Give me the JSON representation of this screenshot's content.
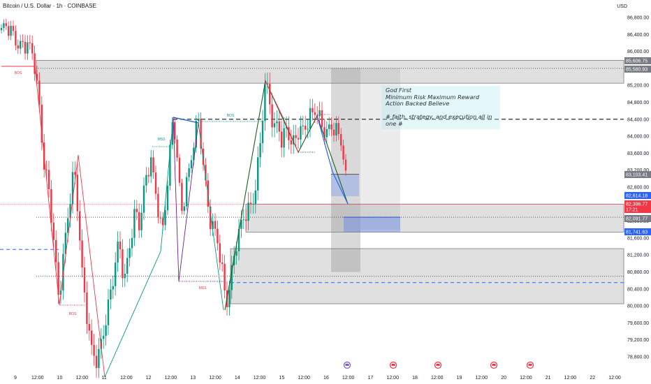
{
  "header": {
    "title": "Bitcoin / U.S. Dollar · 1h · COINBASE",
    "currency": "USD"
  },
  "note": {
    "line1": "God First",
    "line2": "Minimum Risk Maximum Reward",
    "line3": "Action Backed Believe",
    "line4": "# faith, strategy, and execution all in one #"
  },
  "colors": {
    "up": "#089981",
    "down": "#f23645",
    "zone": "#9e9e9e",
    "blue_dash": "#2962ff",
    "price_label": "#f23645",
    "blue_label": "#2962ff",
    "grey_label": "#787b86"
  },
  "chart_data": {
    "type": "candlestick",
    "title": "Bitcoin / U.S. Dollar · 1h · COINBASE",
    "y_axis": {
      "unit": "USD",
      "range": [
        78600,
        86900
      ],
      "ticks": [
        "86,800.00",
        "86,400.00",
        "86,000.00",
        "85,600.00",
        "85,200.00",
        "84,800.00",
        "84,400.00",
        "84,000.00",
        "83,600.00",
        "83,200.00",
        "82,800.00",
        "82,400.00",
        "82,000.00",
        "81,600.00",
        "81,200.00",
        "80,800.00",
        "80,400.00",
        "80,000.00",
        "79,600.00",
        "79,200.00",
        "78,800.00"
      ]
    },
    "x_axis": {
      "ticks": [
        "9",
        "12:00",
        "10",
        "12:00",
        "11",
        "12:00",
        "12",
        "12:00",
        "13",
        "12:00",
        "14",
        "12:00",
        "15",
        "12:00",
        "16",
        "12:00",
        "17",
        "12:00",
        "18",
        "12:00",
        "19",
        "12:00",
        "20",
        "12:00",
        "21",
        "12:00",
        "22",
        "12:00"
      ]
    },
    "price_labels": [
      {
        "text": "85,606.75",
        "value": 85606.75,
        "style": "grey"
      },
      {
        "text": "85,580.93",
        "value": 85580.93,
        "style": "grey"
      },
      {
        "text": "83,103.41",
        "value": 83103.41,
        "style": "grey"
      },
      {
        "text": "82,614.18",
        "value": 82614.18,
        "style": "blue"
      },
      {
        "text": "82,396.77",
        "value": 82396.77,
        "style": "red",
        "sub": "17:21"
      },
      {
        "text": "82,091.77",
        "value": 82091.77,
        "style": "grey"
      },
      {
        "text": "81,741.63",
        "value": 81741.63,
        "style": "blue"
      }
    ],
    "zones": [
      {
        "from": 85250,
        "to": 85790
      },
      {
        "from": 81740,
        "to": 82400
      },
      {
        "from": 80050,
        "to": 81350
      }
    ],
    "levels": [
      {
        "value": 85600,
        "style": "dotted"
      },
      {
        "value": 84400,
        "style": "dashed-black"
      },
      {
        "value": 82090,
        "style": "dotted"
      },
      {
        "value": 81330,
        "style": "dashed-blue"
      },
      {
        "value": 80700,
        "style": "dotted"
      },
      {
        "value": 80550,
        "style": "dashed-blue"
      }
    ],
    "annotations": [
      {
        "text": "BOS",
        "price": 85710
      },
      {
        "text": "BOS",
        "price": 79820
      },
      {
        "text": "MSS",
        "price": 83750
      },
      {
        "text": "MSS",
        "price": 80400
      },
      {
        "text": "BOS",
        "price": 84450
      }
    ],
    "last_price": 82396.77,
    "countdown": "17:21"
  }
}
